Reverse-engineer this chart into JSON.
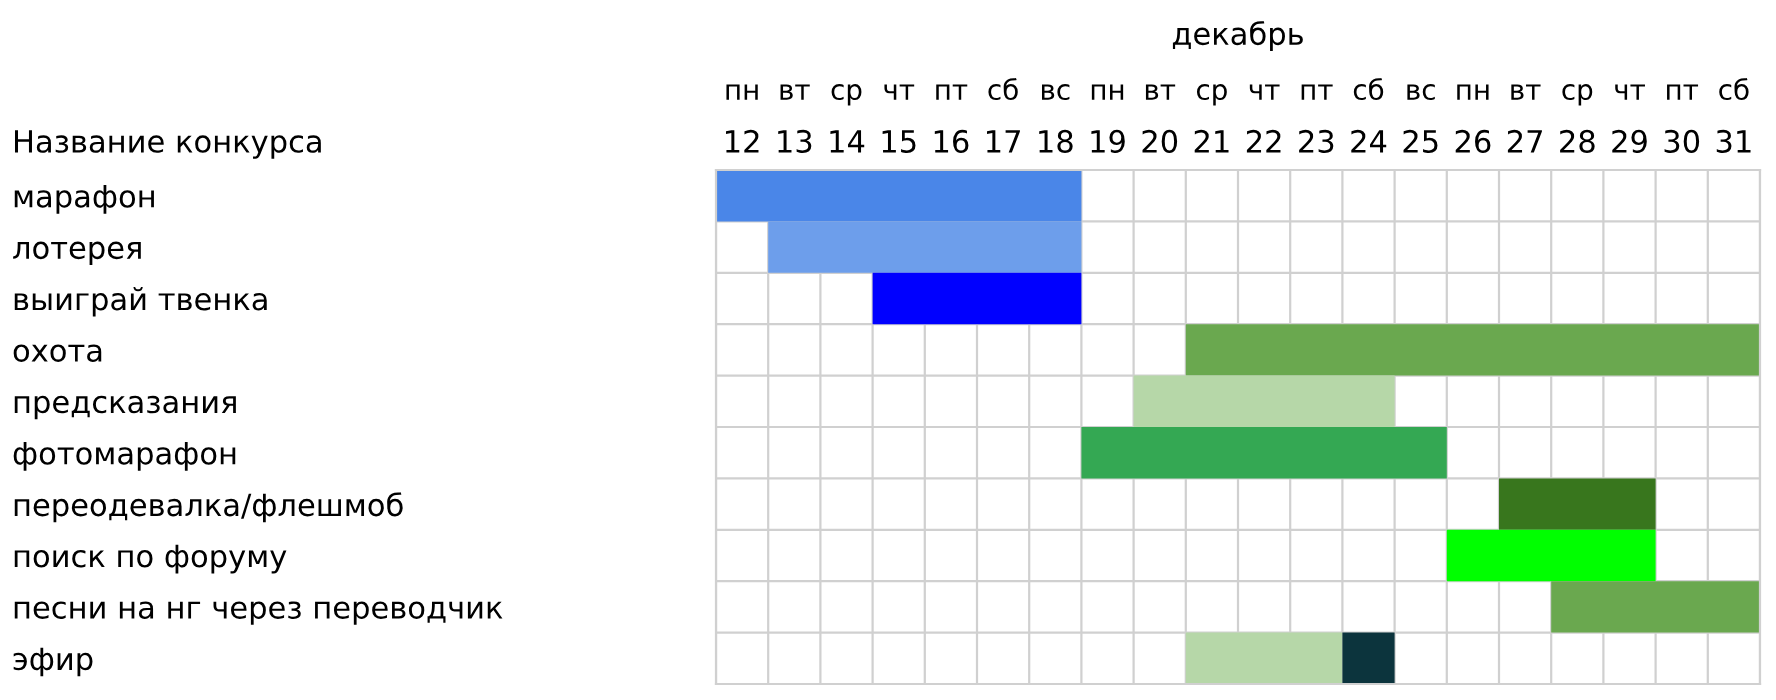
{
  "chart_data": {
    "type": "bar",
    "orientation": "horizontal",
    "title": "декабрь",
    "categories": [
      "марафон",
      "лотерея",
      "выиграй твенка",
      "охота",
      "предсказания",
      "фотомарафон",
      "переодевалка/флешмоб",
      "поиск по форуму",
      "песни на нг через переводчик",
      "эфир"
    ],
    "series": [
      {
        "base": [
          12,
          13,
          15,
          21,
          20,
          19,
          27,
          26,
          28,
          21
        ],
        "values": [
          7,
          6,
          4,
          11,
          5,
          7,
          3,
          4,
          4,
          3
        ],
        "colors": [
          "#4a86e8",
          "#6d9eeb",
          "#0000ff",
          "#6aa84f",
          "#b6d7a8",
          "#34a853",
          "#38761d",
          "#00ff00",
          "#6aa84f",
          "#b6d7a8"
        ]
      },
      {
        "base": [
          null,
          null,
          null,
          null,
          null,
          null,
          null,
          null,
          null,
          24
        ],
        "values": [
          null,
          null,
          null,
          null,
          null,
          null,
          null,
          null,
          null,
          1
        ],
        "color": "#0c343d"
      }
    ],
    "xlim": [
      12,
      32
    ],
    "xticks": [
      {
        "value": 12.5,
        "label": "12"
      },
      {
        "value": 13.5,
        "label": "13"
      },
      {
        "value": 14.5,
        "label": "14"
      },
      {
        "value": 15.5,
        "label": "15"
      },
      {
        "value": 16.5,
        "label": "16"
      },
      {
        "value": 17.5,
        "label": "17"
      },
      {
        "value": 18.5,
        "label": "18"
      },
      {
        "value": 19.5,
        "label": "19"
      },
      {
        "value": 20.5,
        "label": "20"
      },
      {
        "value": 21.5,
        "label": "21"
      },
      {
        "value": 22.5,
        "label": "22"
      },
      {
        "value": 23.5,
        "label": "23"
      },
      {
        "value": 24.5,
        "label": "24"
      },
      {
        "value": 25.5,
        "label": "25"
      },
      {
        "value": 26.5,
        "label": "26"
      },
      {
        "value": 27.5,
        "label": "27"
      },
      {
        "value": 28.5,
        "label": "28"
      },
      {
        "value": 29.5,
        "label": "29"
      },
      {
        "value": 30.5,
        "label": "30"
      },
      {
        "value": 31.5,
        "label": "31"
      }
    ],
    "annotations": [
      "пн",
      "вт",
      "ср",
      "чт",
      "пт",
      "сб",
      "вс",
      "пн",
      "вт",
      "ср",
      "чт",
      "пт",
      "сб",
      "вс",
      "пн",
      "вт",
      "ср",
      "чт",
      "пт",
      "сб"
    ],
    "ylabel": "Название конкурса",
    "grid": true,
    "legend": false
  }
}
